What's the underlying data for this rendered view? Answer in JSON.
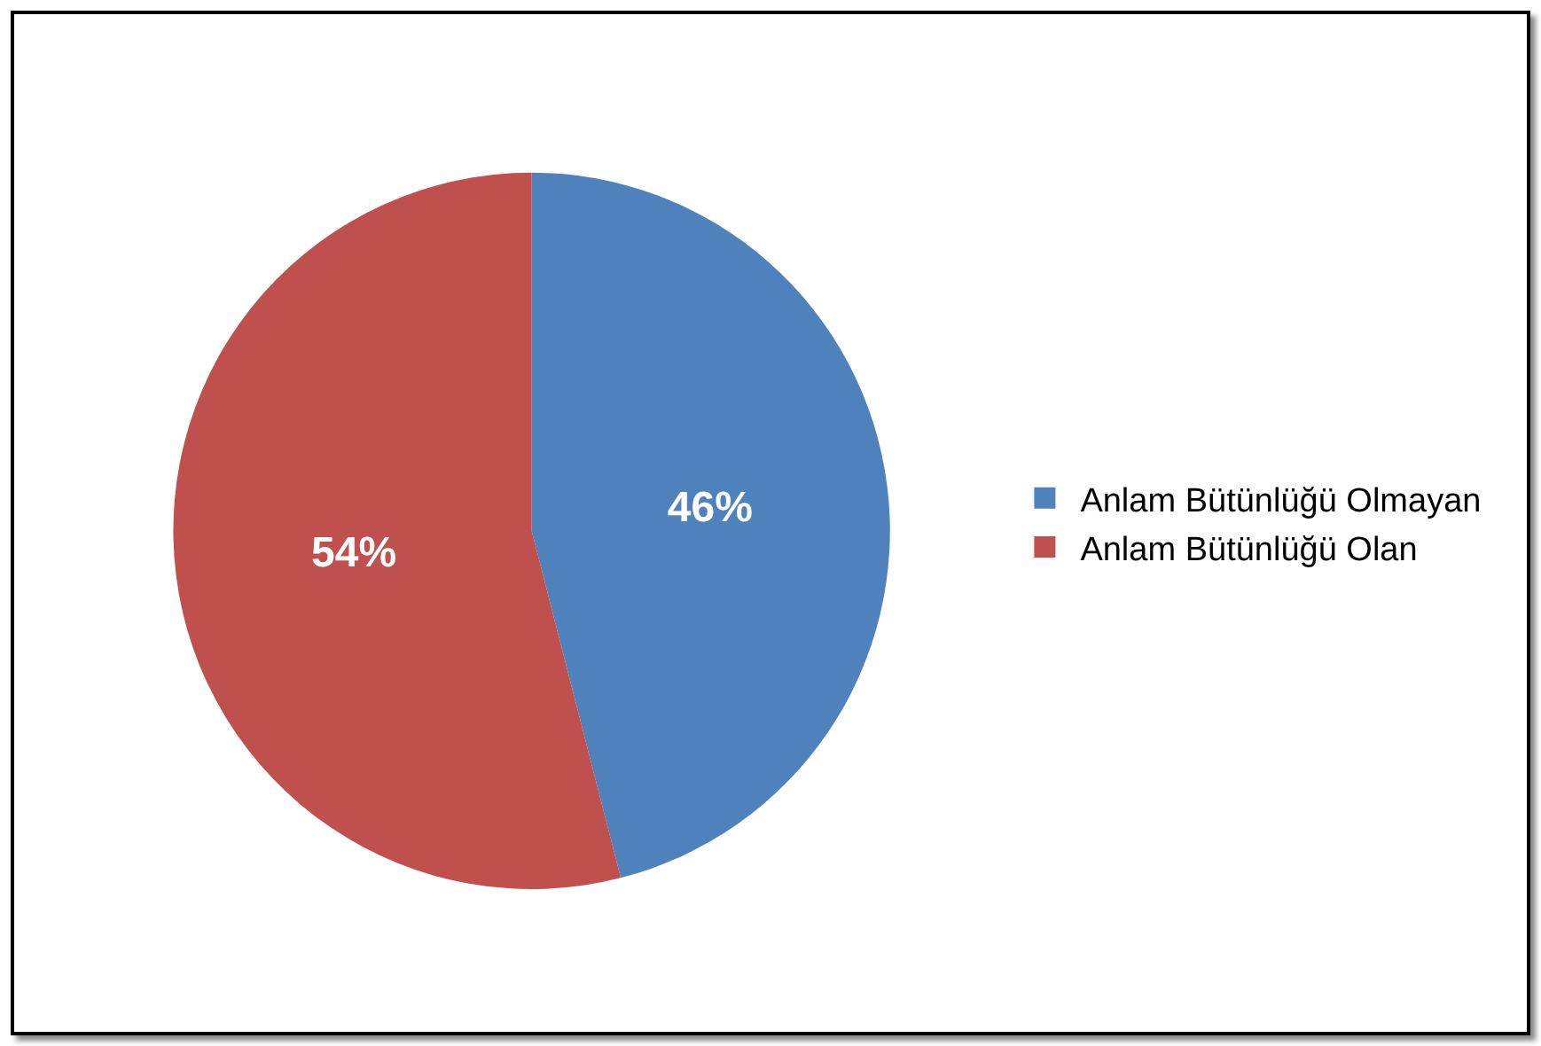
{
  "chart_data": {
    "type": "pie",
    "categories": [
      "Anlam Bütünlüğü Olmayan",
      "Anlam Bütünlüğü Olan"
    ],
    "values": [
      46,
      54
    ],
    "colors": [
      "#4f81bd",
      "#c0504d"
    ],
    "value_labels": [
      "46%",
      "54%"
    ],
    "legend": "right"
  }
}
